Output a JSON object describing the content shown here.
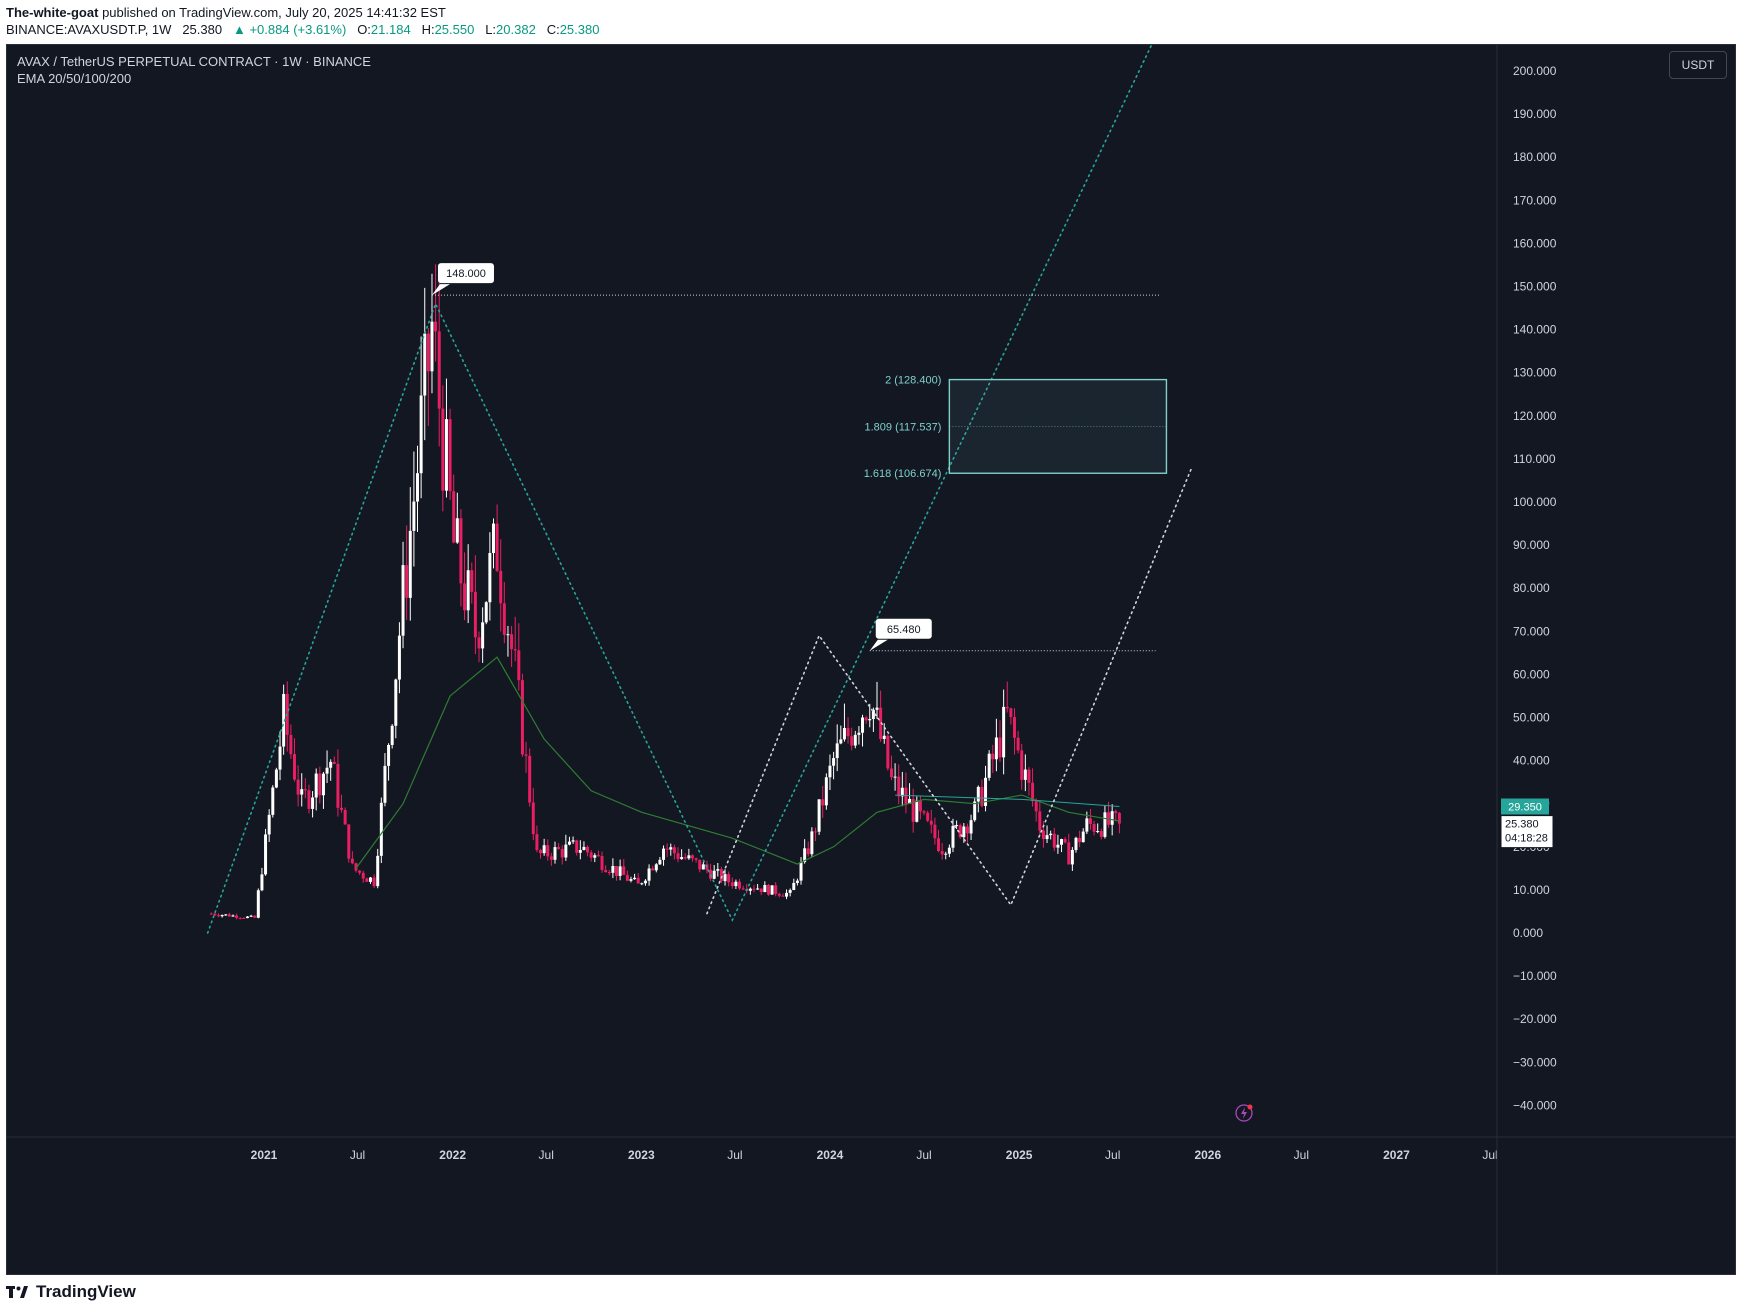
{
  "header": {
    "author": "The-white-goat",
    "published": "published on TradingView.com, July 20, 2025 14:41:32 EST",
    "symbol": "BINANCE:AVAXUSDT.P, 1W",
    "last": "25.380",
    "change_arrow": "▲",
    "change": "+0.884 (+3.61%)",
    "open_label": "O:",
    "open": "21.184",
    "high_label": "H:",
    "high": "25.550",
    "low_label": "L:",
    "low": "20.382",
    "close_label": "C:",
    "close": "25.380"
  },
  "legend": {
    "title": "AVAX / TetherUS PERPETUAL CONTRACT · 1W · BINANCE",
    "indicator": "EMA 20/50/100/200"
  },
  "currency_button": "USDT",
  "footer": {
    "brand": "TradingView",
    "logo_icon": "tradingview-logo-icon"
  },
  "colors": {
    "background": "#131722",
    "up": "#ffffff",
    "down": "#e91e63",
    "trend": "#26a69a",
    "zone": "#7fd1cc",
    "ema": "#2e7d32"
  },
  "chart_data": {
    "type": "candlestick",
    "timeframe": "1W",
    "y_range": [
      -40,
      200
    ],
    "y_ticks": [
      "200.000",
      "190.000",
      "180.000",
      "170.000",
      "160.000",
      "150.000",
      "140.000",
      "130.000",
      "120.000",
      "110.000",
      "100.000",
      "90.000",
      "80.000",
      "70.000",
      "60.000",
      "50.000",
      "40.000",
      "30.000",
      "20.000",
      "10.000",
      "0.000",
      "−10.000",
      "−20.000",
      "−30.000",
      "−40.000"
    ],
    "x_ticks": [
      {
        "label": "2021",
        "date": "2021-01-01",
        "bold": true
      },
      {
        "label": "Jul",
        "date": "2021-07-01"
      },
      {
        "label": "2022",
        "date": "2022-01-01",
        "bold": true
      },
      {
        "label": "Jul",
        "date": "2022-07-01"
      },
      {
        "label": "2023",
        "date": "2023-01-01",
        "bold": true
      },
      {
        "label": "Jul",
        "date": "2023-07-01"
      },
      {
        "label": "2024",
        "date": "2024-01-01",
        "bold": true
      },
      {
        "label": "Jul",
        "date": "2024-07-01"
      },
      {
        "label": "2025",
        "date": "2025-01-01",
        "bold": true
      },
      {
        "label": "Jul",
        "date": "2025-07-01"
      },
      {
        "label": "2026",
        "date": "2026-01-01",
        "bold": true
      },
      {
        "label": "Jul",
        "date": "2026-07-01"
      },
      {
        "label": "2027",
        "date": "2027-01-01",
        "bold": true
      },
      {
        "label": "Jul",
        "date": "2027-07-01"
      }
    ],
    "price_path": [
      [
        "2020-09-21",
        4.5
      ],
      [
        "2020-12-14",
        3.5
      ],
      [
        "2021-02-08",
        50
      ],
      [
        "2021-03-15",
        30
      ],
      [
        "2021-05-10",
        40
      ],
      [
        "2021-06-21",
        15
      ],
      [
        "2021-08-02",
        12
      ],
      [
        "2021-09-20",
        70
      ],
      [
        "2021-11-22",
        140
      ],
      [
        "2022-01-03",
        90
      ],
      [
        "2022-02-14",
        70
      ],
      [
        "2022-03-28",
        90
      ],
      [
        "2022-05-02",
        60
      ],
      [
        "2022-06-13",
        18
      ],
      [
        "2022-09-05",
        20
      ],
      [
        "2022-12-26",
        11
      ],
      [
        "2023-02-13",
        20
      ],
      [
        "2023-06-19",
        12
      ],
      [
        "2023-10-16",
        9
      ],
      [
        "2023-11-27",
        22
      ],
      [
        "2024-01-08",
        40
      ],
      [
        "2024-03-18",
        55
      ],
      [
        "2024-04-29",
        35
      ],
      [
        "2024-08-05",
        20
      ],
      [
        "2024-10-07",
        28
      ],
      [
        "2024-12-09",
        50
      ],
      [
        "2025-02-10",
        25
      ],
      [
        "2025-04-07",
        18
      ],
      [
        "2025-05-12",
        25
      ],
      [
        "2025-07-14",
        25.38
      ]
    ],
    "ema_values": [
      [
        "2021-06-28",
        15
      ],
      [
        "2021-09-27",
        30
      ],
      [
        "2021-12-27",
        55
      ],
      [
        "2022-03-28",
        64
      ],
      [
        "2022-06-27",
        45
      ],
      [
        "2022-09-26",
        33
      ],
      [
        "2023-01-02",
        28
      ],
      [
        "2023-06-26",
        22
      ],
      [
        "2023-10-30",
        16
      ],
      [
        "2024-01-08",
        20
      ],
      [
        "2024-04-01",
        28
      ],
      [
        "2024-07-01",
        31
      ],
      [
        "2024-10-07",
        30
      ],
      [
        "2025-01-06",
        32
      ],
      [
        "2025-04-07",
        28
      ],
      [
        "2025-07-14",
        26
      ]
    ],
    "ema_line2": [
      [
        "2024-05-06",
        32
      ],
      [
        "2025-01-06",
        31
      ],
      [
        "2025-07-14",
        29.35
      ]
    ],
    "annotations": {
      "high_2021": {
        "label": "148.000",
        "date": "2021-11-22",
        "value": 148
      },
      "high_2024": {
        "label": "65.480",
        "date": "2024-03-18",
        "value": 65.48
      },
      "fib_levels": [
        {
          "label": "2 (128.400)",
          "value": 128.4
        },
        {
          "label": "1.809 (117.537)",
          "value": 117.537
        },
        {
          "label": "1.618 (106.674)",
          "value": 106.674
        }
      ]
    },
    "price_labels": [
      {
        "text": "29.350",
        "value": 29.35,
        "color": "#26a69a"
      },
      {
        "text": "25.380",
        "value": 25.38,
        "color": "#ffffff",
        "countdown": "04:18:28"
      },
      {
        "text": "25.359",
        "value": 25.359,
        "color": "#388e3c"
      }
    ],
    "trend_lines": [
      {
        "style": "teal-dotted",
        "points": [
          [
            "2020-09-14",
            0
          ],
          [
            "2021-11-29",
            146
          ],
          [
            "2023-06-26",
            3
          ],
          [
            "2025-10-20",
            215
          ]
        ]
      },
      {
        "style": "white-dotted",
        "points": [
          [
            "2023-05-08",
            4.5
          ],
          [
            "2023-12-11",
            69
          ],
          [
            "2024-12-16",
            6.5
          ],
          [
            "2025-12-01",
            108
          ]
        ]
      }
    ]
  }
}
